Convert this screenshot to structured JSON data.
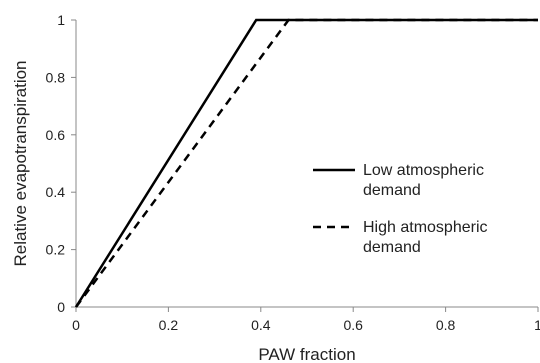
{
  "chart_data": {
    "type": "line",
    "xlabel": "PAW fraction",
    "ylabel": "Relative evapotranspiration",
    "xlim": [
      0,
      1
    ],
    "ylim": [
      0,
      1
    ],
    "x_ticks": [
      "0",
      "0.2",
      "0.4",
      "0.6",
      "0.8",
      "1"
    ],
    "y_ticks": [
      "0",
      "0.2",
      "0.4",
      "0.6",
      "0.8",
      "1"
    ],
    "grid": false,
    "legend_position": "right",
    "series": [
      {
        "name": "Low atmospheric demand",
        "legend_lines": [
          "Low atmospheric",
          "demand"
        ],
        "style": "solid",
        "color": "#000000",
        "x": [
          0,
          0.39,
          1
        ],
        "y": [
          0,
          1,
          1
        ]
      },
      {
        "name": "High atmospheric demand",
        "legend_lines": [
          "High atmospheric",
          "demand"
        ],
        "style": "dashed",
        "color": "#000000",
        "x": [
          0,
          0.46,
          1
        ],
        "y": [
          0,
          1,
          1
        ]
      }
    ]
  }
}
